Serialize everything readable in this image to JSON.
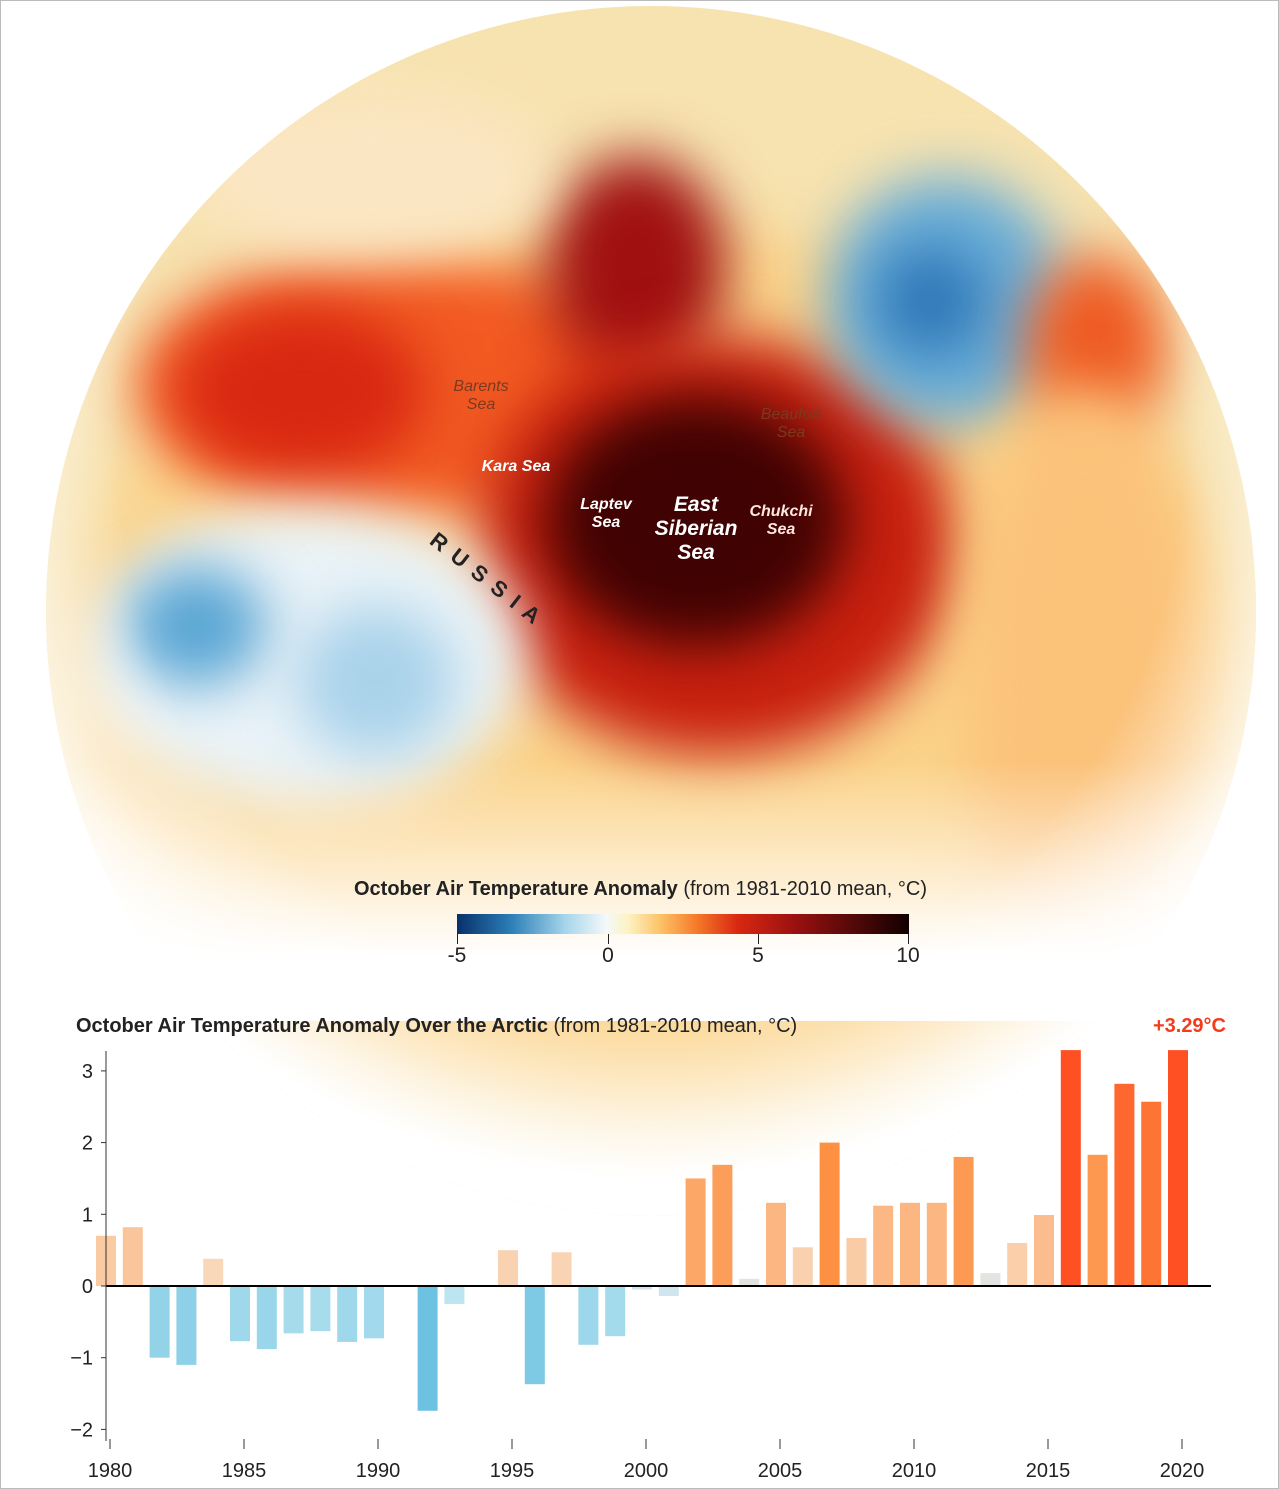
{
  "map": {
    "labels": {
      "barents": "Barents\nSea",
      "kara": "Kara Sea",
      "laptev": "Laptev\nSea",
      "east_siberian": "East\nSiberian\nSea",
      "chukchi": "Chukchi\nSea",
      "beaufort": "Beaufort\nSea",
      "russia": "R U S S I A"
    },
    "colorbar": {
      "title_bold": "October Air Temperature Anomaly",
      "title_rest": " (from 1981-2010 mean, °C)",
      "ticks": [
        "-5",
        "0",
        "5",
        "10"
      ],
      "range": [
        -5,
        10
      ],
      "colors": [
        "#08306b",
        "#2c7fb8",
        "#f4f8fa",
        "#fdc267",
        "#d92812",
        "#120000"
      ]
    }
  },
  "chart_data": {
    "type": "bar",
    "title_bold": "October Air Temperature Anomaly Over the Arctic",
    "title_rest": " (from 1981-2010 mean, °C)",
    "callout": "+3.29°C",
    "callout_color": "#f23c1c",
    "xlabel": "",
    "ylabel": "",
    "ylim": [
      -2.2,
      3.2
    ],
    "xlim": [
      1980,
      2020
    ],
    "yticks": [
      3,
      2,
      1,
      0,
      -1,
      -2
    ],
    "ytick_labels": [
      "3",
      "2",
      "1",
      "0",
      "−1",
      "−2"
    ],
    "xticks": [
      "1980",
      "1985",
      "1990",
      "1995",
      "2000",
      "2005",
      "2010",
      "2015",
      "2020"
    ],
    "grid": false,
    "x": [
      1980,
      1981,
      1982,
      1983,
      1984,
      1985,
      1986,
      1987,
      1988,
      1989,
      1990,
      1991,
      1992,
      1993,
      1994,
      1995,
      1996,
      1997,
      1998,
      1999,
      2000,
      2001,
      2002,
      2003,
      2004,
      2005,
      2006,
      2007,
      2008,
      2009,
      2010,
      2011,
      2012,
      2013,
      2014,
      2015,
      2016,
      2017,
      2018,
      2019,
      2020
    ],
    "values": [
      0.7,
      0.82,
      -1.0,
      -1.1,
      0.38,
      -0.77,
      -0.88,
      -0.66,
      -0.63,
      -0.78,
      -0.73,
      0,
      -1.74,
      -0.25,
      0,
      0.5,
      -1.37,
      0.47,
      -0.82,
      -0.7,
      -0.05,
      -0.14,
      1.5,
      1.69,
      0.1,
      1.16,
      0.54,
      2.0,
      0.67,
      1.12,
      1.16,
      1.16,
      1.8,
      0.18,
      0.6,
      0.99,
      3.29,
      1.83,
      2.82,
      2.57,
      3.29
    ]
  }
}
